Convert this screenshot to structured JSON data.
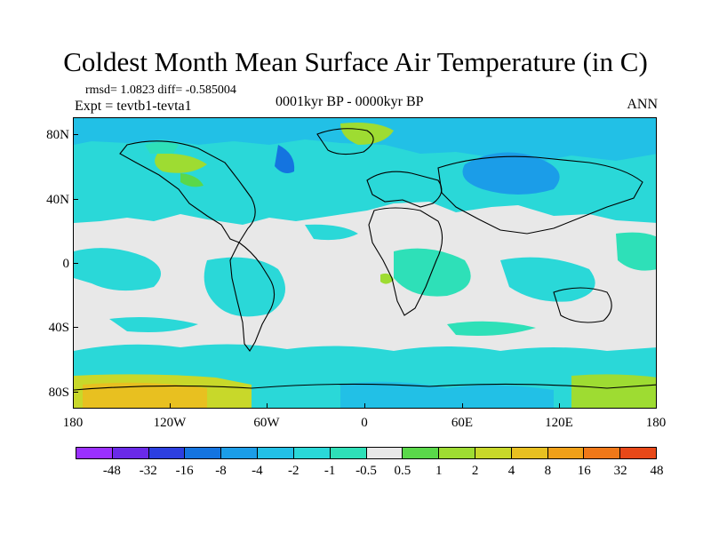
{
  "title": "Coldest Month Mean Surface Air Temperature (in C)",
  "annotations": {
    "rmsd_line": "rmsd= 1.0823 diff= -0.585004",
    "expt_line": "Expt = tevtb1-tevta1",
    "period": "0001kyr BP - 0000kyr BP",
    "season": "ANN"
  },
  "axes": {
    "y_labels": [
      "80N",
      "40N",
      "0",
      "40S",
      "80S"
    ],
    "x_labels": [
      "180",
      "120W",
      "60W",
      "0",
      "60E",
      "120E",
      "180"
    ]
  },
  "colorbar": {
    "colors": [
      "#9b30ff",
      "#6a2ae8",
      "#2c3fe0",
      "#1474e0",
      "#1b9de8",
      "#22c0e6",
      "#2ad8d8",
      "#2ee0b8",
      "#e8e8e8",
      "#5ad84a",
      "#9edc32",
      "#c8d82a",
      "#e8c020",
      "#f0a018",
      "#f07818",
      "#e84818"
    ],
    "labels": [
      "-48",
      "-32",
      "-16",
      "-8",
      "-4",
      "-2",
      "-1",
      "-0.5",
      "0.5",
      "1",
      "2",
      "4",
      "8",
      "16",
      "32",
      "48"
    ]
  },
  "colors": {
    "background_neutral": "#e8e8e8",
    "cyan": "#2ad8d8",
    "teal": "#2ee0b8",
    "light_blue": "#22c0e6",
    "blue": "#1b9de8",
    "green": "#9edc32",
    "coastline": "#000000"
  }
}
